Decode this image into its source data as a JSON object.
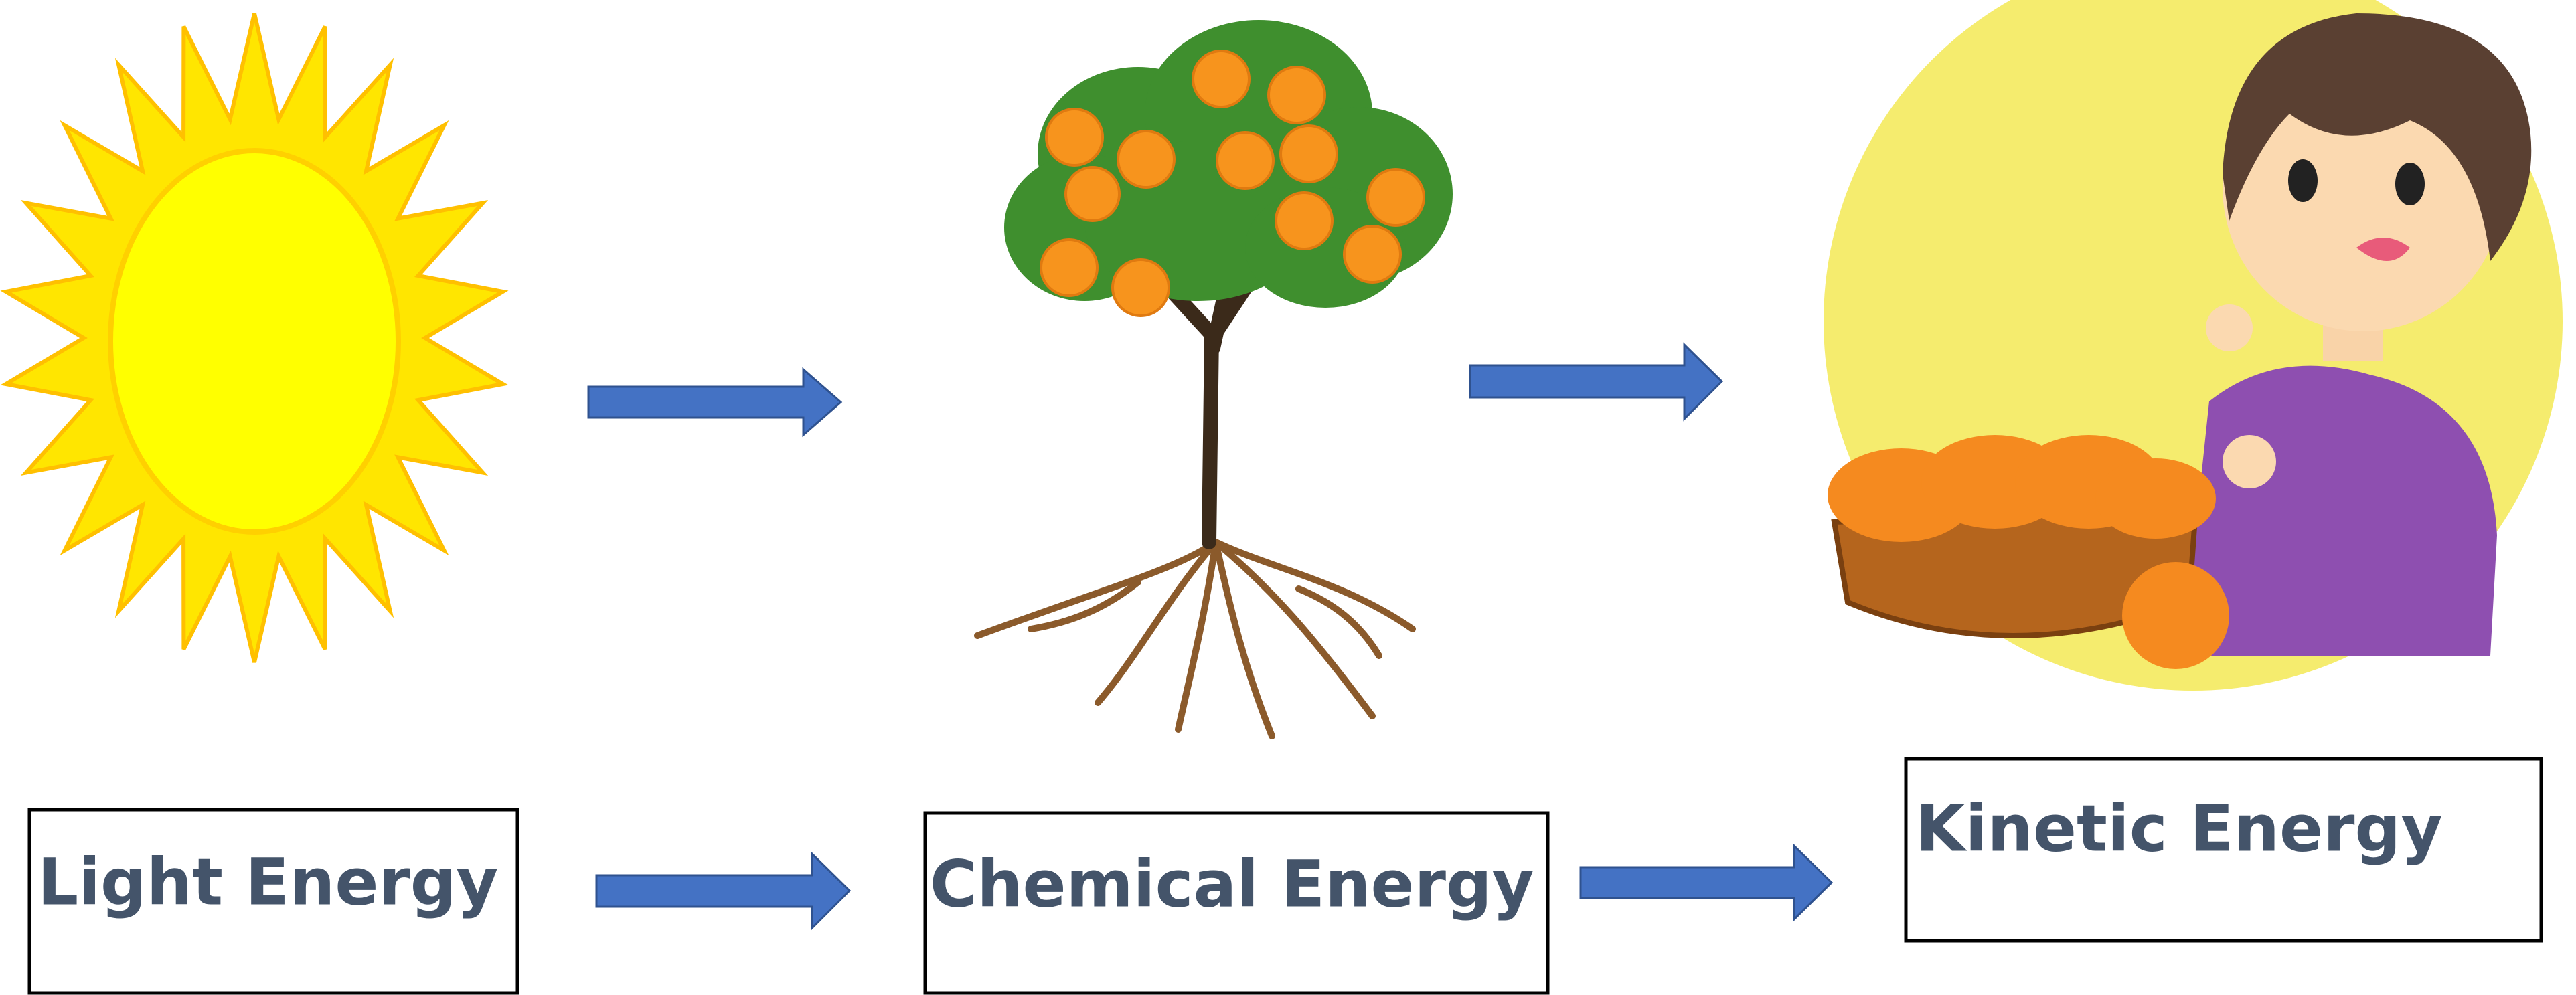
{
  "steps": [
    {
      "label": "Light Energy"
    },
    {
      "label": "Chemical Energy"
    },
    {
      "label": "Kinetic Energy"
    }
  ]
}
